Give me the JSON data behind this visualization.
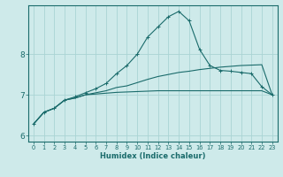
{
  "xlabel": "Humidex (Indice chaleur)",
  "ylabel": "",
  "background_color": "#ceeaea",
  "grid_color": "#aad4d4",
  "line_color": "#1a6b6b",
  "xlim": [
    -0.5,
    23.5
  ],
  "ylim": [
    5.85,
    9.2
  ],
  "yticks": [
    6,
    7,
    8
  ],
  "xticks": [
    0,
    1,
    2,
    3,
    4,
    5,
    6,
    7,
    8,
    9,
    10,
    11,
    12,
    13,
    14,
    15,
    16,
    17,
    18,
    19,
    20,
    21,
    22,
    23
  ],
  "series1_x": [
    0,
    1,
    2,
    3,
    4,
    5,
    6,
    7,
    8,
    9,
    10,
    11,
    12,
    13,
    14,
    15,
    16,
    17,
    18,
    19,
    20,
    21,
    22,
    23
  ],
  "series1_y": [
    6.28,
    6.57,
    6.67,
    6.87,
    6.92,
    7.0,
    7.02,
    7.04,
    7.06,
    7.07,
    7.08,
    7.09,
    7.1,
    7.1,
    7.1,
    7.1,
    7.1,
    7.1,
    7.1,
    7.1,
    7.1,
    7.1,
    7.1,
    7.0
  ],
  "series2_x": [
    0,
    1,
    2,
    3,
    4,
    5,
    6,
    7,
    8,
    9,
    10,
    11,
    12,
    13,
    14,
    15,
    16,
    17,
    18,
    19,
    20,
    21,
    22,
    23
  ],
  "series2_y": [
    6.28,
    6.57,
    6.67,
    6.87,
    6.92,
    7.0,
    7.05,
    7.1,
    7.18,
    7.22,
    7.3,
    7.38,
    7.45,
    7.5,
    7.55,
    7.58,
    7.62,
    7.65,
    7.68,
    7.7,
    7.72,
    7.73,
    7.74,
    7.0
  ],
  "series3_x": [
    0,
    1,
    2,
    3,
    4,
    5,
    6,
    7,
    8,
    9,
    10,
    11,
    12,
    13,
    14,
    15,
    16,
    17,
    18,
    19,
    20,
    21,
    22,
    23
  ],
  "series3_y": [
    6.28,
    6.57,
    6.67,
    6.87,
    6.95,
    7.05,
    7.15,
    7.28,
    7.52,
    7.72,
    8.0,
    8.42,
    8.67,
    8.92,
    9.05,
    8.82,
    8.12,
    7.72,
    7.6,
    7.58,
    7.55,
    7.52,
    7.2,
    7.0
  ]
}
